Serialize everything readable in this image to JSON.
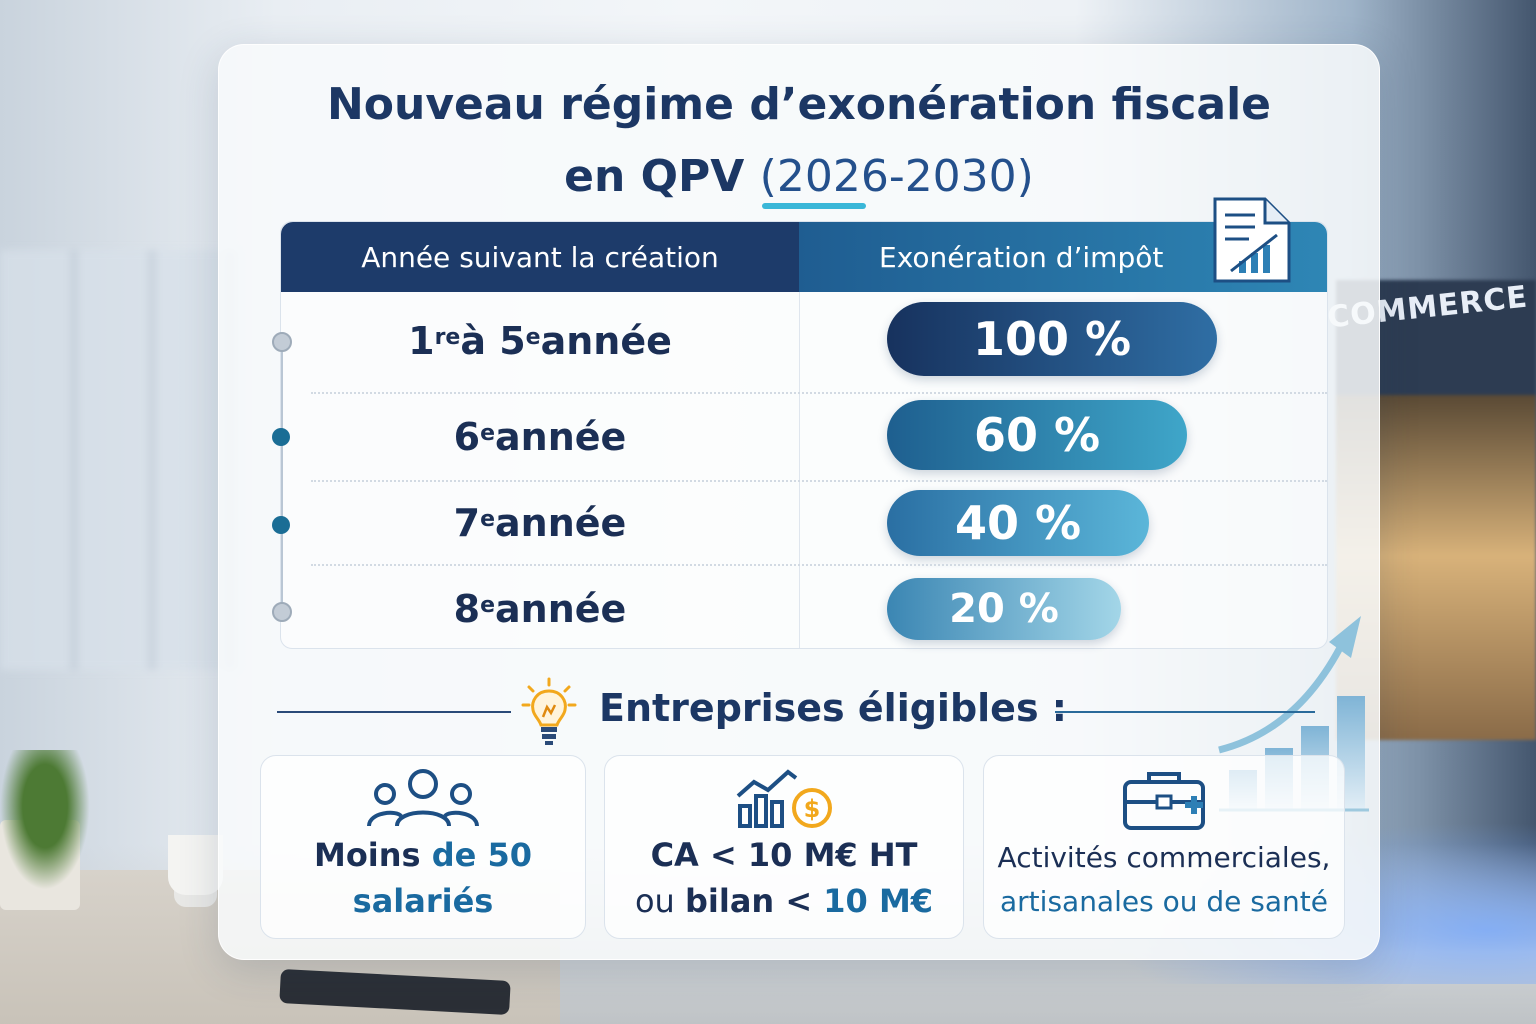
{
  "title": {
    "line1": "Nouveau régime d’exonération fiscale",
    "line2_prefix": "en QPV ",
    "line2_years": "(2026-2030)"
  },
  "table": {
    "headers": [
      "Année suivant la création",
      "Exonération d’impôt"
    ],
    "rows": [
      {
        "label_a": "1",
        "sup_a": "re",
        "label_b": " à 5",
        "sup_b": "e",
        "label_c": " année",
        "value": "100 %",
        "fraction": 1.0,
        "color_from": "#17325e",
        "color_to": "#2f6ea4"
      },
      {
        "label_a": "6",
        "sup_a": "e",
        "label_c": " année",
        "value": "60 %",
        "fraction": 0.6,
        "color_from": "#1e5f8f",
        "color_to": "#3fa6c9"
      },
      {
        "label_a": "7",
        "sup_a": "e",
        "label_c": " année",
        "value": "40 %",
        "fraction": 0.4,
        "color_from": "#2a6fa3",
        "color_to": "#5bb6d9"
      },
      {
        "label_a": "8",
        "sup_a": "e",
        "label_c": " année",
        "value": "20 %",
        "fraction": 0.2,
        "color_from": "#3b86b3",
        "color_to": "#a3d6e8"
      }
    ]
  },
  "eligible": {
    "title": "Entreprises éligibles :",
    "cards": [
      {
        "icon": "people-group-icon",
        "line1_a": "Moins ",
        "line1_b": "de 50",
        "line2": "salariés"
      },
      {
        "icon": "revenue-chart-icon",
        "line1": "CA < 10 M€ HT",
        "line2_a": "ou ",
        "line2_b": "bilan < ",
        "line2_c": "10 M€"
      },
      {
        "icon": "briefcase-medical-icon",
        "line1": "Activités commerciales,",
        "line2": "artisanales ou de santé"
      }
    ]
  },
  "background": {
    "shop_sign": "COMMERCE"
  },
  "colors": {
    "navy": "#1c3764",
    "accent": "#1a6aa0",
    "underline": "#3ab7d8"
  }
}
